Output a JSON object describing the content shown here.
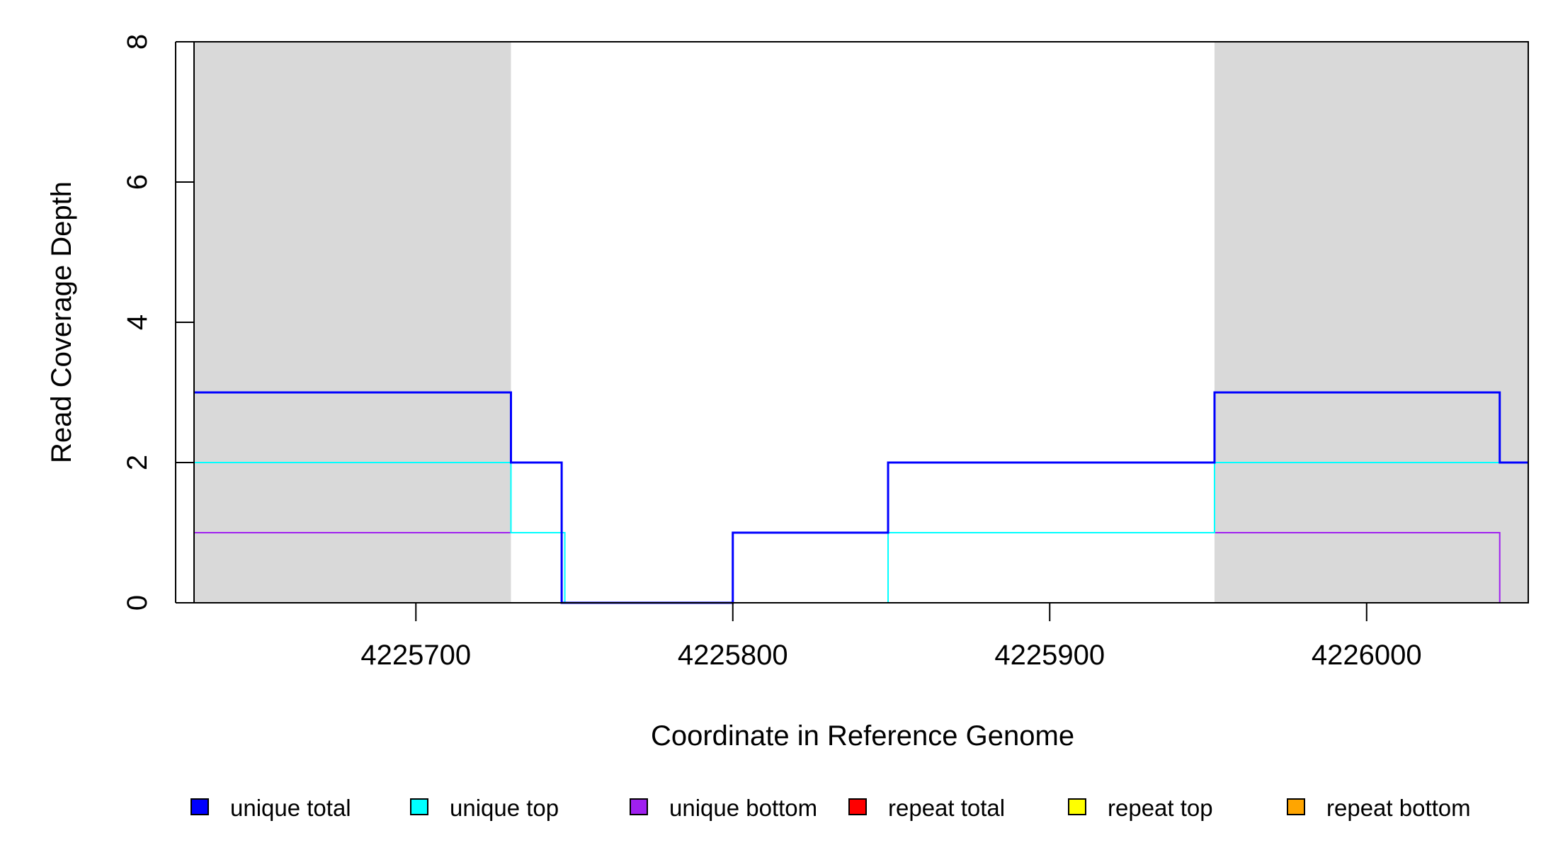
{
  "chart_data": {
    "type": "line",
    "xlabel": "Coordinate in Reference Genome",
    "ylabel": "Read Coverage Depth",
    "xlim": [
      4225630,
      4226051
    ],
    "ylim": [
      0,
      8
    ],
    "x_ticks": [
      4225700,
      4225800,
      4225900,
      4226000
    ],
    "x_tick_labels": [
      "4225700",
      "4225800",
      "4225900",
      "4226000"
    ],
    "y_ticks": [
      0,
      2,
      4,
      6,
      8
    ],
    "y_tick_labels": [
      "0",
      "2",
      "4",
      "6",
      "8"
    ],
    "grid": false,
    "legend_position": "bottom",
    "shaded_regions": [
      {
        "x_start": 4225630,
        "x_end": 4225730,
        "color": "#d9d9d9"
      },
      {
        "x_start": 4225952,
        "x_end": 4226051,
        "color": "#d9d9d9"
      }
    ],
    "series": [
      {
        "name": "unique total",
        "color": "#0000ff",
        "step_x": [
          4225630,
          4225730,
          4225746,
          4225800,
          4225849,
          4225952,
          4226042,
          4226051
        ],
        "step_y": [
          3,
          2,
          0,
          1,
          2,
          3,
          2,
          2
        ]
      },
      {
        "name": "unique top",
        "color": "#00ffff",
        "step_x": [
          4225630,
          4225730,
          4225747,
          4225849,
          4225952,
          4226051
        ],
        "step_y": [
          2,
          1,
          0,
          1,
          2,
          2
        ]
      },
      {
        "name": "unique bottom",
        "color": "#a020f0",
        "step_x": [
          4225630,
          4225746,
          4225800,
          4226042,
          4226051
        ],
        "step_y": [
          1,
          0,
          1,
          0,
          0
        ]
      },
      {
        "name": "repeat total",
        "color": "#ff0000",
        "step_x": [
          4225630,
          4226051
        ],
        "step_y": [
          0,
          0
        ]
      },
      {
        "name": "repeat top",
        "color": "#ffff00",
        "step_x": [
          4225630,
          4226051
        ],
        "step_y": [
          0,
          0
        ]
      },
      {
        "name": "repeat bottom",
        "color": "#ffa500",
        "step_x": [
          4225630,
          4226051
        ],
        "step_y": [
          0,
          0
        ]
      }
    ]
  }
}
